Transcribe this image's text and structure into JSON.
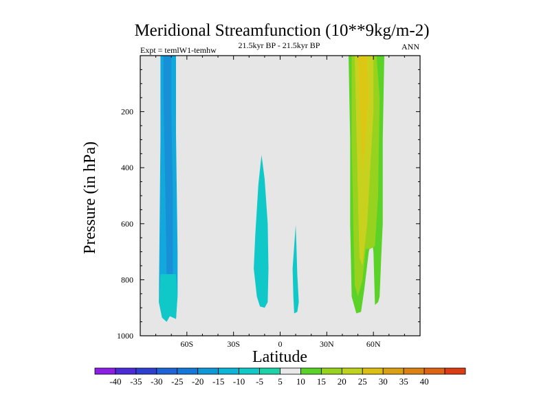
{
  "chart_data": {
    "type": "contour",
    "title": "Meridional Streamfunction (10**9kg/m-2)",
    "left_string": "Expt = temlW1-temhw",
    "center_string": "21.5kyr BP - 21.5kyr BP",
    "right_string": "ANN",
    "xlabel": "Latitude",
    "ylabel": "Pressure (in hPa)",
    "xlim": [
      -90,
      90
    ],
    "ylim": [
      1000,
      0
    ],
    "x_ticks": [
      {
        "value": -60,
        "label": "60S"
      },
      {
        "value": -30,
        "label": "30S"
      },
      {
        "value": 0,
        "label": "0"
      },
      {
        "value": 30,
        "label": "30N"
      },
      {
        "value": 60,
        "label": "60N"
      }
    ],
    "y_ticks": [
      {
        "value": 200,
        "label": "200"
      },
      {
        "value": 400,
        "label": "400"
      },
      {
        "value": 600,
        "label": "600"
      },
      {
        "value": 800,
        "label": "800"
      },
      {
        "value": 1000,
        "label": "1000"
      }
    ],
    "background_color": "#e6e6e6",
    "colorbar": {
      "labels": [
        "-40",
        "-35",
        "-30",
        "-25",
        "-20",
        "-15",
        "-10",
        "-5",
        "5",
        "10",
        "15",
        "20",
        "25",
        "30",
        "35",
        "40"
      ],
      "colors": [
        "#8c1ee6",
        "#4a2bd6",
        "#2e3fcf",
        "#1e63d6",
        "#1478d8",
        "#0f98d8",
        "#0cb4d8",
        "#10c8c8",
        "#1ed2a8",
        "#e8e8e8",
        "#5ad227",
        "#96d21e",
        "#bed21e",
        "#dcbe14",
        "#dca014",
        "#dc8214",
        "#dc6414",
        "#dc3c14"
      ]
    },
    "features": [
      {
        "name": "sh-deep-cell",
        "value": -15,
        "color": "#12a8dc",
        "outline": [
          [
            -77,
            0
          ],
          [
            -67,
            0
          ],
          [
            -67,
            280
          ],
          [
            -66,
            700
          ],
          [
            -66,
            850
          ],
          [
            -67,
            940
          ],
          [
            -71,
            930
          ],
          [
            -73,
            950
          ],
          [
            -76,
            935
          ],
          [
            -78,
            880
          ],
          [
            -77,
            300
          ]
        ]
      },
      {
        "name": "sh-deep-cell-core",
        "value": -20,
        "color": "#1790d8",
        "outline": [
          [
            -75,
            0
          ],
          [
            -70,
            0
          ],
          [
            -70,
            200
          ],
          [
            -69,
            500
          ],
          [
            -69,
            780
          ],
          [
            -71,
            830
          ],
          [
            -73,
            780
          ],
          [
            -74,
            450
          ],
          [
            -75,
            150
          ]
        ]
      },
      {
        "name": "sh-deep-cell-tail",
        "value": -10,
        "color": "#10c8c8",
        "outline": [
          [
            -77,
            780
          ],
          [
            -67,
            780
          ],
          [
            -66,
            860
          ],
          [
            -67,
            940
          ],
          [
            -71,
            930
          ],
          [
            -73,
            950
          ],
          [
            -76,
            935
          ],
          [
            -78,
            880
          ]
        ]
      },
      {
        "name": "tropical-cell-south",
        "value": -10,
        "color": "#10c8c8",
        "outline": [
          [
            -12,
            355
          ],
          [
            -10,
            440
          ],
          [
            -8,
            600
          ],
          [
            -7.5,
            760
          ],
          [
            -8,
            880
          ],
          [
            -10,
            900
          ],
          [
            -13,
            895
          ],
          [
            -15,
            860
          ],
          [
            -17,
            760
          ],
          [
            -16,
            640
          ],
          [
            -14,
            460
          ]
        ]
      },
      {
        "name": "tropical-cell-north",
        "value": -10,
        "color": "#10c8c8",
        "outline": [
          [
            10,
            605
          ],
          [
            10.5,
            680
          ],
          [
            11,
            780
          ],
          [
            12,
            880
          ],
          [
            11,
            915
          ],
          [
            9,
            920
          ],
          [
            8.5,
            860
          ],
          [
            8,
            760
          ],
          [
            9,
            680
          ]
        ]
      },
      {
        "name": "nh-cell-outer",
        "value": 10,
        "color": "#5ad227",
        "outline": [
          [
            44,
            0
          ],
          [
            67,
            0
          ],
          [
            66,
            300
          ],
          [
            66,
            600
          ],
          [
            65,
            720
          ],
          [
            64,
            860
          ],
          [
            63,
            880
          ],
          [
            61,
            890
          ],
          [
            60,
            700
          ],
          [
            59,
            660
          ],
          [
            57,
            700
          ],
          [
            54,
            840
          ],
          [
            52,
            915
          ],
          [
            49,
            920
          ],
          [
            46,
            860
          ],
          [
            45,
            600
          ],
          [
            45,
            300
          ]
        ]
      },
      {
        "name": "nh-cell-mid",
        "value": 15,
        "color": "#96d21e",
        "outline": [
          [
            46,
            0
          ],
          [
            57,
            0
          ],
          [
            62,
            0
          ],
          [
            64,
            150
          ],
          [
            63,
            500
          ],
          [
            61,
            680
          ],
          [
            58,
            690
          ],
          [
            55,
            690
          ],
          [
            53,
            800
          ],
          [
            50,
            860
          ],
          [
            48,
            820
          ],
          [
            47,
            600
          ],
          [
            46,
            300
          ]
        ]
      },
      {
        "name": "nh-cell-core",
        "value": 20,
        "color": "#c8d21e",
        "outline": [
          [
            48,
            0
          ],
          [
            60,
            0
          ],
          [
            60,
            200
          ],
          [
            58,
            400
          ],
          [
            56,
            600
          ],
          [
            53,
            750
          ],
          [
            51,
            720
          ],
          [
            50,
            500
          ],
          [
            49,
            250
          ]
        ]
      },
      {
        "name": "nh-cell-peak",
        "value": 25,
        "color": "#dcc814",
        "outline": [
          [
            50,
            0
          ],
          [
            56,
            0
          ],
          [
            57,
            150
          ],
          [
            55,
            300
          ],
          [
            53,
            420
          ],
          [
            52,
            300
          ],
          [
            51,
            120
          ]
        ]
      }
    ]
  }
}
